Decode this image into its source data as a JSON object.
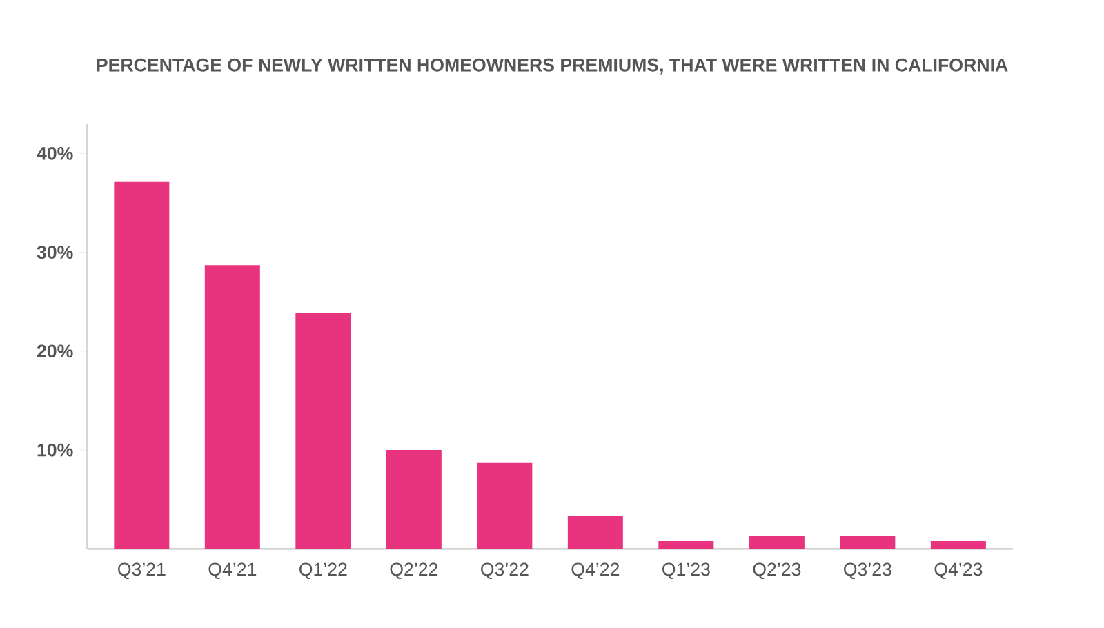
{
  "chart_data": {
    "type": "bar",
    "title": "PERCENTAGE OF NEWLY WRITTEN HOMEOWNERS PREMIUMS, THAT WERE WRITTEN IN CALIFORNIA",
    "categories": [
      "Q3’21",
      "Q4’21",
      "Q1’22",
      "Q2’22",
      "Q3’22",
      "Q4’22",
      "Q1’23",
      "Q2’23",
      "Q3’23",
      "Q4’23"
    ],
    "values": [
      37.1,
      28.7,
      23.9,
      10.0,
      8.7,
      3.3,
      0.8,
      1.3,
      1.3,
      0.8
    ],
    "color": "#e8337f",
    "ylim": [
      0,
      43
    ],
    "yticks": [
      {
        "value": 10,
        "label": "10%"
      },
      {
        "value": 20,
        "label": "20%"
      },
      {
        "value": 30,
        "label": "30%"
      },
      {
        "value": 40,
        "label": "40%"
      }
    ],
    "grid": false
  }
}
